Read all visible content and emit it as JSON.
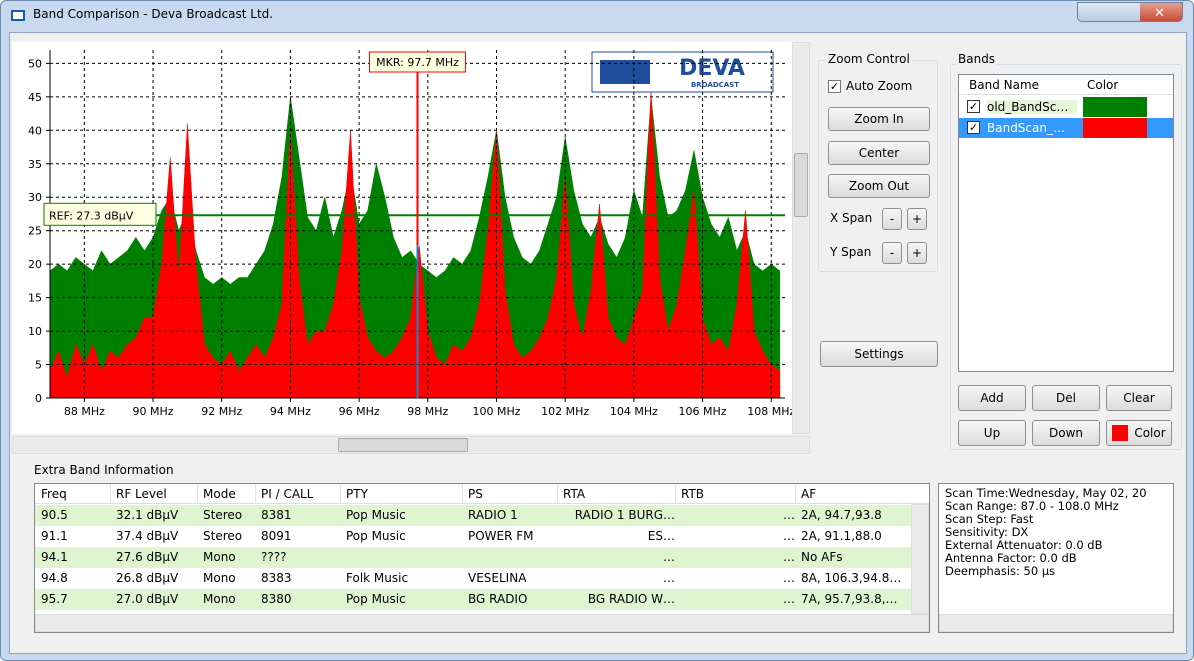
{
  "window": {
    "title": "Band Comparison - Deva Broadcast Ltd."
  },
  "chart_data": {
    "type": "area",
    "logo": {
      "name": "DEVA",
      "sub": "BROADCAST"
    },
    "x": [
      87.0,
      87.25,
      87.5,
      87.75,
      88.0,
      88.25,
      88.5,
      88.75,
      89.0,
      89.25,
      89.5,
      89.75,
      90.0,
      90.25,
      90.5,
      90.75,
      91.0,
      91.25,
      91.5,
      91.75,
      92.0,
      92.25,
      92.5,
      92.75,
      93.0,
      93.25,
      93.5,
      93.75,
      94.0,
      94.25,
      94.5,
      94.75,
      95.0,
      95.25,
      95.5,
      95.75,
      96.0,
      96.25,
      96.5,
      96.75,
      97.0,
      97.25,
      97.5,
      97.75,
      98.0,
      98.25,
      98.5,
      98.75,
      99.0,
      99.25,
      99.5,
      99.75,
      100.0,
      100.25,
      100.5,
      100.75,
      101.0,
      101.25,
      101.5,
      101.75,
      102.0,
      102.25,
      102.5,
      102.75,
      103.0,
      103.25,
      103.5,
      103.75,
      104.0,
      104.25,
      104.5,
      104.75,
      105.0,
      105.25,
      105.5,
      105.75,
      106.0,
      106.25,
      106.5,
      106.75,
      107.0,
      107.25,
      107.5,
      107.75,
      108.0,
      108.25
    ],
    "series": [
      {
        "name": "old_BandSc…",
        "color": "#008000",
        "values": [
          19,
          20,
          19,
          21,
          20,
          19,
          22,
          20,
          21,
          22,
          24,
          22,
          24,
          28,
          30,
          25,
          28,
          22,
          18,
          17,
          18,
          17,
          18,
          18,
          20,
          22,
          26,
          33,
          45,
          36,
          27,
          25,
          30,
          24,
          28,
          34,
          26,
          28,
          35,
          30,
          24,
          21,
          22,
          20,
          19,
          18,
          19,
          21,
          20,
          22,
          27,
          33,
          40,
          30,
          24,
          21,
          20,
          22,
          26,
          30,
          39,
          31,
          26,
          24,
          27,
          23,
          21,
          24,
          31,
          27,
          45,
          33,
          27,
          28,
          31,
          37,
          30,
          26,
          24,
          27,
          22,
          25,
          20,
          19,
          20,
          19
        ]
      },
      {
        "name": "BandScan_…",
        "color": "#ff0000",
        "values": [
          4,
          7,
          3,
          8,
          5,
          8,
          4,
          7,
          6,
          8,
          9,
          12,
          12,
          20,
          36,
          18,
          41,
          20,
          8,
          6,
          5,
          7,
          4,
          6,
          8,
          6,
          9,
          14,
          40,
          18,
          8,
          10,
          10,
          14,
          22,
          40,
          15,
          9,
          7,
          6,
          7,
          9,
          12,
          22.8,
          10,
          6,
          5,
          8,
          7,
          9,
          14,
          25,
          40,
          16,
          8,
          6,
          7,
          9,
          12,
          18,
          33,
          14,
          9,
          16,
          29,
          12,
          9,
          8,
          12,
          16,
          46,
          18,
          10,
          14,
          22,
          31,
          12,
          8,
          9,
          7,
          14,
          28,
          10,
          7,
          5,
          4
        ]
      }
    ],
    "xlim": [
      87,
      108.4
    ],
    "ylim": [
      0,
      52
    ],
    "xticks": [
      {
        "value": 88,
        "label": "88 MHz"
      },
      {
        "value": 90,
        "label": "90 MHz"
      },
      {
        "value": 92,
        "label": "92 MHz"
      },
      {
        "value": 94,
        "label": "94 MHz"
      },
      {
        "value": 96,
        "label": "96 MHz"
      },
      {
        "value": 98,
        "label": "98 MHz"
      },
      {
        "value": 100,
        "label": "100 MHz"
      },
      {
        "value": 102,
        "label": "102 MHz"
      },
      {
        "value": 104,
        "label": "104 MHz"
      },
      {
        "value": 106,
        "label": "106 MHz"
      },
      {
        "value": 108,
        "label": "108 MHz"
      }
    ],
    "yticks": [
      0,
      5,
      10,
      15,
      20,
      25,
      30,
      35,
      40,
      45,
      50
    ],
    "grid": true,
    "marker": {
      "value": 97.7,
      "label": "MKR: 97.7 MHz"
    },
    "ref": {
      "value": 27.3,
      "label": "REF: 27.3 dBµV"
    }
  },
  "zoom": {
    "title": "Zoom Control",
    "auto": "Auto Zoom",
    "zoom_in": "Zoom In",
    "center": "Center",
    "zoom_out": "Zoom Out",
    "x_span": "X Span",
    "y_span": "Y Span",
    "minus": "-",
    "plus": "+",
    "settings": "Settings"
  },
  "bands": {
    "title": "Bands",
    "headers": [
      "Band Name",
      "Color"
    ],
    "buttons": [
      "Add",
      "Del",
      "Clear",
      "Up",
      "Down",
      "Color"
    ]
  },
  "extra": {
    "title": "Extra Band Information",
    "headers": [
      "Freq",
      "RF Level",
      "Mode",
      "PI / CALL",
      "PTY",
      "PS",
      "RTA",
      "RTB",
      "AF"
    ],
    "rows": [
      [
        "90.5",
        "32.1 dBµV",
        "Stereo",
        "8381",
        "Pop Music",
        "RADIO 1",
        "RADIO 1  BURG…",
        "…",
        "2A, 94.7,93.8"
      ],
      [
        "91.1",
        "37.4 dBµV",
        "Stereo",
        "8091",
        "Pop Music",
        "POWER FM",
        "ES…",
        "…",
        "2A, 91.1,88.0"
      ],
      [
        "94.1",
        "27.6 dBµV",
        "Mono",
        "????",
        null,
        null,
        "…",
        "…",
        "No AFs"
      ],
      [
        "94.8",
        "26.8 dBµV",
        "Mono",
        "8383",
        "Folk Music",
        "VESELINA",
        "…",
        "…",
        "8A, 106.3,94.8…"
      ],
      [
        "95.7",
        "27.0 dBµV",
        "Mono",
        "8380",
        "Pop Music",
        "BG RADIO",
        "BG RADIO   W…",
        "…",
        "7A, 95.7,93.8,…"
      ]
    ],
    "info": [
      "Scan Time:Wednesday, May 02, 20",
      "Scan Range: 87.0 - 108.0 MHz",
      "Scan Step: Fast",
      "Sensitivity: DX",
      "External Attenuator: 0.0 dB",
      "Antenna Factor: 0.0 dB",
      "Deemphasis: 50 µs"
    ]
  }
}
